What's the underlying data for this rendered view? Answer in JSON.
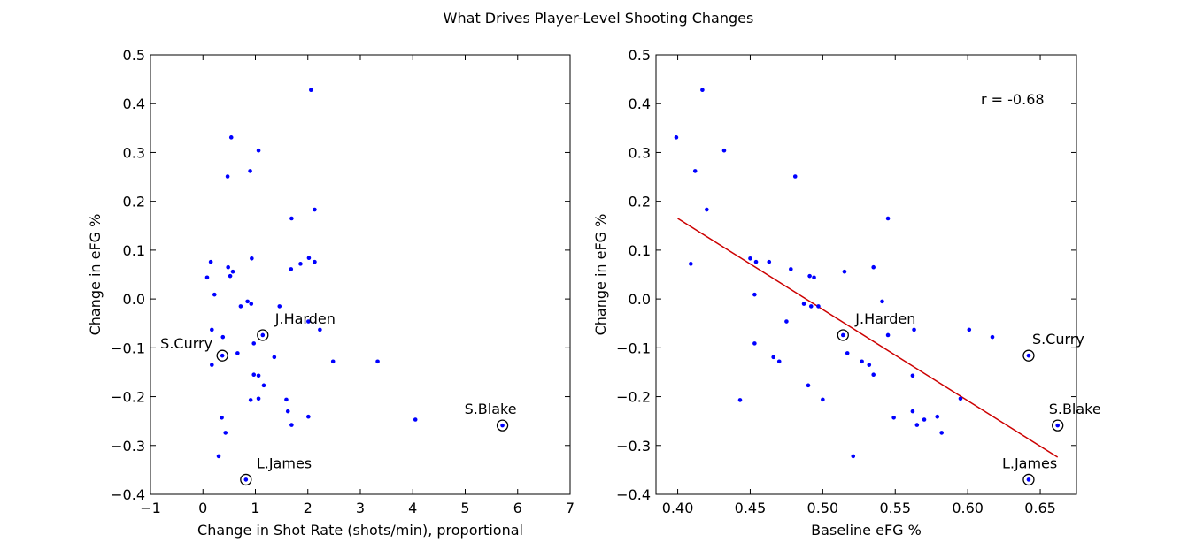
{
  "figure": {
    "title": "What Drives Player-Level Shooting Changes"
  },
  "chart_data": [
    {
      "type": "scatter",
      "xlabel": "Change in Shot Rate (shots/min), proportional",
      "ylabel": "Change in eFG %",
      "xlim": [
        -1,
        7
      ],
      "ylim": [
        -0.4,
        0.5
      ],
      "xticks": [
        -1,
        0,
        1,
        2,
        3,
        4,
        5,
        6,
        7
      ],
      "xtick_labels": [
        "−1",
        "0",
        "1",
        "2",
        "3",
        "4",
        "5",
        "6",
        "7"
      ],
      "yticks": [
        -0.4,
        -0.3,
        -0.2,
        -0.1,
        0.0,
        0.1,
        0.2,
        0.3,
        0.4,
        0.5
      ],
      "ytick_labels": [
        "−0.4",
        "−0.3",
        "−0.2",
        "−0.1",
        "0.0",
        "0.1",
        "0.2",
        "0.3",
        "0.4",
        "0.5"
      ],
      "grid": false,
      "point_color": "#0000ff",
      "points": [
        [
          2.06,
          0.428
        ],
        [
          0.54,
          0.331
        ],
        [
          1.06,
          0.304
        ],
        [
          0.9,
          0.262
        ],
        [
          0.47,
          0.251
        ],
        [
          2.13,
          0.183
        ],
        [
          1.69,
          0.165
        ],
        [
          0.93,
          0.083
        ],
        [
          2.02,
          0.084
        ],
        [
          0.15,
          0.076
        ],
        [
          2.13,
          0.076
        ],
        [
          1.86,
          0.072
        ],
        [
          0.48,
          0.065
        ],
        [
          1.68,
          0.061
        ],
        [
          0.57,
          0.056
        ],
        [
          0.52,
          0.047
        ],
        [
          0.08,
          0.044
        ],
        [
          0.22,
          0.009
        ],
        [
          0.85,
          -0.005
        ],
        [
          0.92,
          -0.01
        ],
        [
          1.46,
          -0.015
        ],
        [
          0.72,
          -0.015
        ],
        [
          2.01,
          -0.046
        ],
        [
          0.17,
          -0.063
        ],
        [
          2.23,
          -0.063
        ],
        [
          0.38,
          -0.078
        ],
        [
          0.97,
          -0.091
        ],
        [
          0.66,
          -0.111
        ],
        [
          1.36,
          -0.119
        ],
        [
          2.48,
          -0.128
        ],
        [
          3.33,
          -0.128
        ],
        [
          0.17,
          -0.135
        ],
        [
          0.97,
          -0.155
        ],
        [
          1.06,
          -0.157
        ],
        [
          1.16,
          -0.177
        ],
        [
          1.06,
          -0.204
        ],
        [
          0.91,
          -0.207
        ],
        [
          1.59,
          -0.206
        ],
        [
          1.62,
          -0.23
        ],
        [
          2.01,
          -0.241
        ],
        [
          0.36,
          -0.243
        ],
        [
          4.05,
          -0.247
        ],
        [
          1.69,
          -0.258
        ],
        [
          0.43,
          -0.274
        ],
        [
          0.3,
          -0.322
        ]
      ],
      "highlighted": [
        {
          "name": "J.Harden",
          "x": 1.14,
          "y": -0.074
        },
        {
          "name": "S.Curry",
          "x": 0.37,
          "y": -0.116
        },
        {
          "name": "S.Blake",
          "x": 5.71,
          "y": -0.259
        },
        {
          "name": "L.James",
          "x": 0.82,
          "y": -0.37
        }
      ]
    },
    {
      "type": "scatter",
      "xlabel": "Baseline eFG %",
      "ylabel": "Change in eFG %",
      "xlim": [
        0.385,
        0.675
      ],
      "ylim": [
        -0.4,
        0.5
      ],
      "xticks": [
        0.4,
        0.45,
        0.5,
        0.55,
        0.6,
        0.65
      ],
      "xtick_labels": [
        "0.40",
        "0.45",
        "0.50",
        "0.55",
        "0.60",
        "0.65"
      ],
      "yticks": [
        -0.4,
        -0.3,
        -0.2,
        -0.1,
        0.0,
        0.1,
        0.2,
        0.3,
        0.4,
        0.5
      ],
      "ytick_labels": [
        "−0.4",
        "−0.3",
        "−0.2",
        "−0.1",
        "0.0",
        "0.1",
        "0.2",
        "0.3",
        "0.4",
        "0.5"
      ],
      "grid": false,
      "point_color": "#0000ff",
      "annotation": "r = -0.68",
      "fit_line": {
        "color": "#cc0000",
        "x": [
          0.4,
          0.662
        ],
        "y": [
          0.165,
          -0.324
        ]
      },
      "points": [
        [
          0.399,
          0.331
        ],
        [
          0.417,
          0.428
        ],
        [
          0.412,
          0.262
        ],
        [
          0.432,
          0.304
        ],
        [
          0.481,
          0.251
        ],
        [
          0.42,
          0.183
        ],
        [
          0.545,
          0.165
        ],
        [
          0.409,
          0.072
        ],
        [
          0.45,
          0.083
        ],
        [
          0.454,
          0.076
        ],
        [
          0.463,
          0.076
        ],
        [
          0.478,
          0.061
        ],
        [
          0.535,
          0.065
        ],
        [
          0.515,
          0.056
        ],
        [
          0.491,
          0.047
        ],
        [
          0.494,
          0.044
        ],
        [
          0.453,
          0.009
        ],
        [
          0.541,
          -0.005
        ],
        [
          0.487,
          -0.01
        ],
        [
          0.492,
          -0.015
        ],
        [
          0.497,
          -0.015
        ],
        [
          0.475,
          -0.046
        ],
        [
          0.563,
          -0.063
        ],
        [
          0.601,
          -0.063
        ],
        [
          0.545,
          -0.074
        ],
        [
          0.617,
          -0.078
        ],
        [
          0.453,
          -0.091
        ],
        [
          0.517,
          -0.111
        ],
        [
          0.466,
          -0.119
        ],
        [
          0.47,
          -0.128
        ],
        [
          0.527,
          -0.128
        ],
        [
          0.532,
          -0.135
        ],
        [
          0.535,
          -0.155
        ],
        [
          0.562,
          -0.157
        ],
        [
          0.49,
          -0.177
        ],
        [
          0.595,
          -0.204
        ],
        [
          0.443,
          -0.207
        ],
        [
          0.5,
          -0.206
        ],
        [
          0.562,
          -0.23
        ],
        [
          0.549,
          -0.243
        ],
        [
          0.579,
          -0.241
        ],
        [
          0.57,
          -0.247
        ],
        [
          0.565,
          -0.258
        ],
        [
          0.582,
          -0.274
        ],
        [
          0.521,
          -0.322
        ]
      ],
      "highlighted": [
        {
          "name": "J.Harden",
          "x": 0.514,
          "y": -0.074
        },
        {
          "name": "S.Curry",
          "x": 0.642,
          "y": -0.116
        },
        {
          "name": "S.Blake",
          "x": 0.662,
          "y": -0.259
        },
        {
          "name": "L.James",
          "x": 0.642,
          "y": -0.37
        }
      ]
    }
  ]
}
